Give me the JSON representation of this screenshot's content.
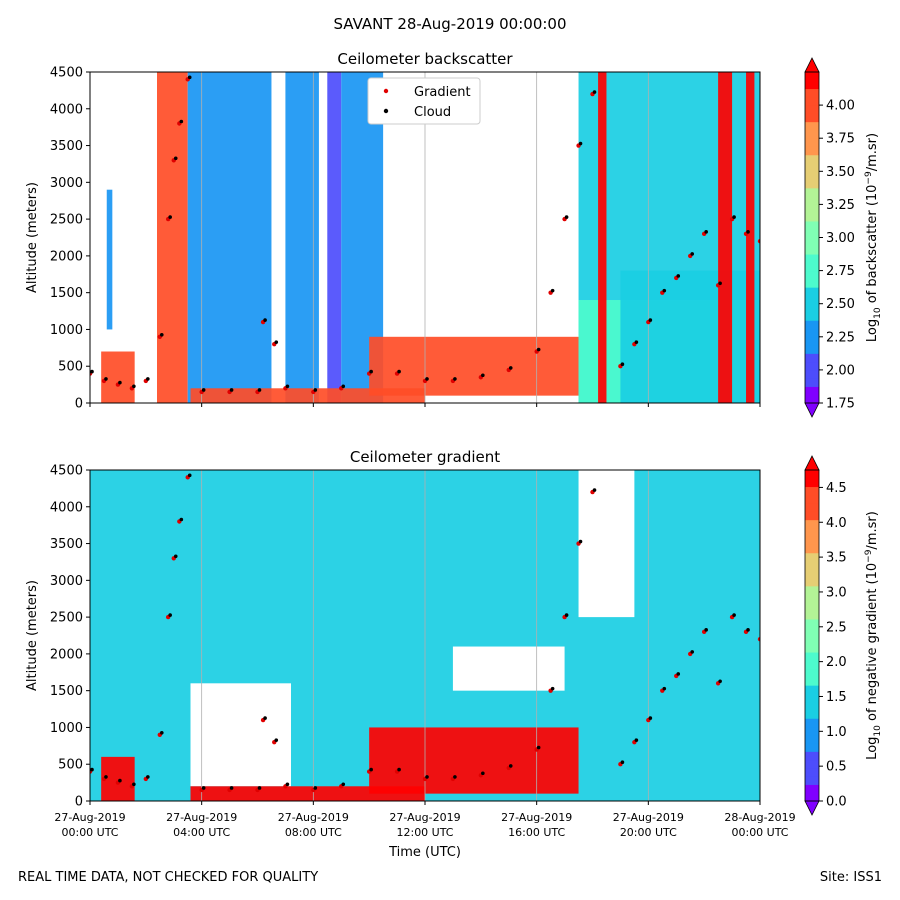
{
  "figure": {
    "suptitle": "SAVANT 28-Aug-2019 00:00:00",
    "footer_left": "REAL TIME DATA, NOT CHECKED FOR QUALITY",
    "footer_right": "Site: ISS1"
  },
  "colors": {
    "gradient_marker": "#e00000",
    "cloud_marker": "#000000",
    "colormap": [
      "#8000ff",
      "#4d4dfc",
      "#1996f3",
      "#1acee3",
      "#4dfbcd",
      "#80ffb4",
      "#b3f396",
      "#e6ce74",
      "#ff964d",
      "#ff4d27",
      "#ff0000"
    ]
  },
  "chart_data": [
    {
      "type": "heatmap",
      "title": "Ceilometer backscatter",
      "ylabel": "Altitude (meters)",
      "xlabel": "",
      "ylim": [
        0,
        4500
      ],
      "yticks": [
        "0",
        "500",
        "1000",
        "1500",
        "2000",
        "2500",
        "3000",
        "3500",
        "4000",
        "4500"
      ],
      "xlim": [
        "27-Aug-2019 00:00",
        "28-Aug-2019 00:00"
      ],
      "colorbar": {
        "label_prefix": "Log",
        "label_sub": "10",
        "label_mid": " of backscatter (10",
        "label_sup": "−9",
        "label_suffix": "/m.sr)",
        "min": 1.75,
        "max": 4.25,
        "extend": "both",
        "ticks": [
          "1.75",
          "2.00",
          "2.25",
          "2.50",
          "2.75",
          "3.00",
          "3.25",
          "3.50",
          "3.75",
          "4.00"
        ]
      },
      "legend": {
        "placement": "upper center",
        "entries": [
          {
            "label": "Gradient",
            "color": "#e00000"
          },
          {
            "label": "Cloud",
            "color": "#000000"
          }
        ]
      },
      "features": [
        {
          "t": [
            0.4,
            1.6
          ],
          "alt": [
            0,
            700
          ],
          "level": 4.1
        },
        {
          "t": [
            0.6,
            0.8
          ],
          "alt": [
            1000,
            2900
          ],
          "level": 2.3
        },
        {
          "t": [
            2.4,
            3.5
          ],
          "alt": [
            0,
            4500
          ],
          "level": 4.1
        },
        {
          "t": [
            3.5,
            6.5
          ],
          "alt": [
            0,
            4500
          ],
          "level": 2.2
        },
        {
          "t": [
            7.0,
            8.2
          ],
          "alt": [
            0,
            4500
          ],
          "level": 2.3
        },
        {
          "t": [
            8.5,
            9.0
          ],
          "alt": [
            0,
            4500
          ],
          "level": 2.1
        },
        {
          "t": [
            9.0,
            10.5
          ],
          "alt": [
            0,
            4500
          ],
          "level": 2.3
        },
        {
          "t": [
            3.6,
            12.0
          ],
          "alt": [
            0,
            200
          ],
          "level": 4.1
        },
        {
          "t": [
            10.0,
            17.5
          ],
          "alt": [
            100,
            900
          ],
          "level": 4.0
        },
        {
          "t": [
            17.5,
            24.0
          ],
          "alt": [
            0,
            4500
          ],
          "level": 2.4
        },
        {
          "t": [
            17.5,
            24.0
          ],
          "alt": [
            0,
            1400
          ],
          "level": 2.7
        },
        {
          "t": [
            19.0,
            24.0
          ],
          "alt": [
            0,
            1800
          ],
          "level": 2.6
        },
        {
          "t": [
            18.2,
            18.5
          ],
          "alt": [
            0,
            4500
          ],
          "level": 4.2
        },
        {
          "t": [
            22.5,
            23.0
          ],
          "alt": [
            0,
            4500
          ],
          "level": 4.2
        },
        {
          "t": [
            23.5,
            23.8
          ],
          "alt": [
            0,
            4500
          ],
          "level": 4.2
        }
      ],
      "cloud_trace": [
        {
          "t": 0.0,
          "alt": 400
        },
        {
          "t": 0.5,
          "alt": 300
        },
        {
          "t": 1.0,
          "alt": 250
        },
        {
          "t": 1.5,
          "alt": 200
        },
        {
          "t": 2.0,
          "alt": 300
        },
        {
          "t": 2.5,
          "alt": 900
        },
        {
          "t": 2.8,
          "alt": 2500
        },
        {
          "t": 3.0,
          "alt": 3300
        },
        {
          "t": 3.2,
          "alt": 3800
        },
        {
          "t": 3.5,
          "alt": 4400
        },
        {
          "t": 4.0,
          "alt": 150
        },
        {
          "t": 5.0,
          "alt": 150
        },
        {
          "t": 6.0,
          "alt": 150
        },
        {
          "t": 6.2,
          "alt": 1100
        },
        {
          "t": 6.6,
          "alt": 800
        },
        {
          "t": 7.0,
          "alt": 200
        },
        {
          "t": 8.0,
          "alt": 150
        },
        {
          "t": 9.0,
          "alt": 200
        },
        {
          "t": 10.0,
          "alt": 400
        },
        {
          "t": 11.0,
          "alt": 400
        },
        {
          "t": 12.0,
          "alt": 300
        },
        {
          "t": 13.0,
          "alt": 300
        },
        {
          "t": 14.0,
          "alt": 350
        },
        {
          "t": 15.0,
          "alt": 450
        },
        {
          "t": 16.0,
          "alt": 700
        },
        {
          "t": 16.5,
          "alt": 1500
        },
        {
          "t": 17.0,
          "alt": 2500
        },
        {
          "t": 17.5,
          "alt": 3500
        },
        {
          "t": 18.0,
          "alt": 4200
        },
        {
          "t": 19.0,
          "alt": 500
        },
        {
          "t": 19.5,
          "alt": 800
        },
        {
          "t": 20.0,
          "alt": 1100
        },
        {
          "t": 20.5,
          "alt": 1500
        },
        {
          "t": 21.0,
          "alt": 1700
        },
        {
          "t": 21.5,
          "alt": 2000
        },
        {
          "t": 22.0,
          "alt": 2300
        },
        {
          "t": 22.5,
          "alt": 1600
        },
        {
          "t": 23.0,
          "alt": 2500
        },
        {
          "t": 23.5,
          "alt": 2300
        },
        {
          "t": 24.0,
          "alt": 2200
        }
      ]
    },
    {
      "type": "heatmap",
      "title": "Ceilometer gradient",
      "ylabel": "Altitude (meters)",
      "xlabel": "Time (UTC)",
      "ylim": [
        0,
        4500
      ],
      "yticks": [
        "0",
        "500",
        "1000",
        "1500",
        "2000",
        "2500",
        "3000",
        "3500",
        "4000",
        "4500"
      ],
      "xticks": [
        {
          "date": "27-Aug-2019",
          "time": "00:00 UTC"
        },
        {
          "date": "27-Aug-2019",
          "time": "04:00 UTC"
        },
        {
          "date": "27-Aug-2019",
          "time": "08:00 UTC"
        },
        {
          "date": "27-Aug-2019",
          "time": "12:00 UTC"
        },
        {
          "date": "27-Aug-2019",
          "time": "16:00 UTC"
        },
        {
          "date": "27-Aug-2019",
          "time": "20:00 UTC"
        },
        {
          "date": "28-Aug-2019",
          "time": "00:00 UTC"
        }
      ],
      "xlim": [
        "27-Aug-2019 00:00",
        "28-Aug-2019 00:00"
      ],
      "colorbar": {
        "label_prefix": "Log",
        "label_sub": "10",
        "label_mid": " of negative gradient (10",
        "label_sup": "−9",
        "label_suffix": "/m.sr)",
        "min": 0.0,
        "max": 4.75,
        "extend": "both",
        "ticks": [
          "0.0",
          "0.5",
          "1.0",
          "1.5",
          "2.0",
          "2.5",
          "3.0",
          "3.5",
          "4.0",
          "4.5"
        ]
      },
      "features": [
        {
          "t": [
            0.0,
            24.0
          ],
          "alt": [
            0,
            4500
          ],
          "level": 1.6
        },
        {
          "t": [
            3.6,
            7.2
          ],
          "alt": [
            200,
            1600
          ],
          "level": null
        },
        {
          "t": [
            13.0,
            17.0
          ],
          "alt": [
            1500,
            2100
          ],
          "level": null
        },
        {
          "t": [
            17.5,
            19.5
          ],
          "alt": [
            2500,
            4500
          ],
          "level": null
        },
        {
          "t": [
            10.0,
            17.5
          ],
          "alt": [
            100,
            1000
          ],
          "level": 4.6
        },
        {
          "t": [
            3.6,
            12.0
          ],
          "alt": [
            0,
            200
          ],
          "level": 4.6
        },
        {
          "t": [
            0.4,
            1.6
          ],
          "alt": [
            0,
            600
          ],
          "level": 4.6
        }
      ],
      "cloud_trace_same_as_above": true
    }
  ]
}
